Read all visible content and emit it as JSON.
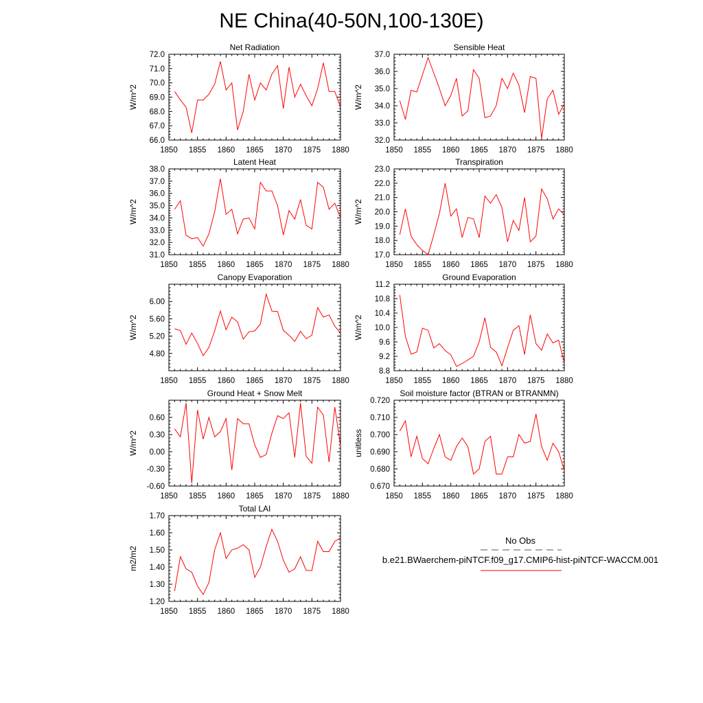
{
  "page": {
    "title": "NE China(40-50N,100-130E)"
  },
  "legend": {
    "obs_label": "No Obs",
    "model_label": "b.e21.BWaerchem-piNTCF.f09_g17.CMIP6-hist-piNTCF-WACCM.001",
    "obs_color": "#555555",
    "model_color": "#ff0000"
  },
  "chart_data": [
    {
      "type": "line",
      "title": "Net Radiation",
      "ylabel": "W/m^2",
      "xlim": [
        1850,
        1880
      ],
      "ylim": [
        66,
        72
      ],
      "xticks": [
        "1850",
        "1855",
        "1860",
        "1865",
        "1870",
        "1875",
        "1880"
      ],
      "yticks": [
        "66.0",
        "67.0",
        "68.0",
        "69.0",
        "70.0",
        "71.0",
        "72.0"
      ],
      "series": [
        {
          "color": "#ff0000",
          "x": [
            1851,
            1852,
            1853,
            1854,
            1855,
            1856,
            1857,
            1858,
            1859,
            1860,
            1861,
            1862,
            1863,
            1864,
            1865,
            1866,
            1867,
            1868,
            1869,
            1870,
            1871,
            1872,
            1873,
            1874,
            1875,
            1876,
            1877,
            1878,
            1879,
            1880
          ],
          "y": [
            69.4,
            68.8,
            68.3,
            66.5,
            68.8,
            68.8,
            69.2,
            69.9,
            71.5,
            69.5,
            70.0,
            66.7,
            68.0,
            70.6,
            68.8,
            70.0,
            69.5,
            70.6,
            71.2,
            68.2,
            71.1,
            69.0,
            69.9,
            69.1,
            68.4,
            69.6,
            71.4,
            69.4,
            69.4,
            68.3
          ]
        }
      ]
    },
    {
      "type": "line",
      "title": "Sensible Heat",
      "ylabel": "W/m^2",
      "xlim": [
        1850,
        1880
      ],
      "ylim": [
        32,
        37
      ],
      "xticks": [
        "1850",
        "1855",
        "1860",
        "1865",
        "1870",
        "1875",
        "1880"
      ],
      "yticks": [
        "32.0",
        "33.0",
        "34.0",
        "35.0",
        "36.0",
        "37.0"
      ],
      "series": [
        {
          "color": "#ff0000",
          "x": [
            1851,
            1852,
            1853,
            1854,
            1855,
            1856,
            1857,
            1858,
            1859,
            1860,
            1861,
            1862,
            1863,
            1864,
            1865,
            1866,
            1867,
            1868,
            1869,
            1870,
            1871,
            1872,
            1873,
            1874,
            1875,
            1876,
            1877,
            1878,
            1879,
            1880
          ],
          "y": [
            34.3,
            33.2,
            34.9,
            34.8,
            35.8,
            36.8,
            35.9,
            35.0,
            34.0,
            34.6,
            35.6,
            33.4,
            33.7,
            36.1,
            35.6,
            33.3,
            33.4,
            34.0,
            35.6,
            35.0,
            35.9,
            35.2,
            33.6,
            35.7,
            35.6,
            32.1,
            34.4,
            34.9,
            33.5,
            34.1
          ]
        }
      ]
    },
    {
      "type": "line",
      "title": "Latent Heat",
      "ylabel": "W/m^2",
      "xlim": [
        1850,
        1880
      ],
      "ylim": [
        31,
        38
      ],
      "xticks": [
        "1850",
        "1855",
        "1860",
        "1865",
        "1870",
        "1875",
        "1880"
      ],
      "yticks": [
        "31.0",
        "32.0",
        "33.0",
        "34.0",
        "35.0",
        "36.0",
        "37.0",
        "38.0"
      ],
      "series": [
        {
          "color": "#ff0000",
          "x": [
            1851,
            1852,
            1853,
            1854,
            1855,
            1856,
            1857,
            1858,
            1859,
            1860,
            1861,
            1862,
            1863,
            1864,
            1865,
            1866,
            1867,
            1868,
            1869,
            1870,
            1871,
            1872,
            1873,
            1874,
            1875,
            1876,
            1877,
            1878,
            1879,
            1880
          ],
          "y": [
            34.7,
            35.4,
            32.6,
            32.3,
            32.4,
            31.7,
            32.7,
            34.5,
            37.2,
            34.3,
            34.7,
            32.7,
            33.9,
            34.0,
            33.1,
            36.9,
            36.2,
            36.2,
            35.0,
            32.6,
            34.6,
            33.9,
            35.5,
            33.4,
            33.1,
            36.9,
            36.5,
            34.7,
            35.2,
            34.0
          ]
        }
      ]
    },
    {
      "type": "line",
      "title": "Transpiration",
      "ylabel": "W/m^2",
      "xlim": [
        1850,
        1880
      ],
      "ylim": [
        17,
        23
      ],
      "xticks": [
        "1850",
        "1855",
        "1860",
        "1865",
        "1870",
        "1875",
        "1880"
      ],
      "yticks": [
        "17.0",
        "18.0",
        "19.0",
        "20.0",
        "21.0",
        "22.0",
        "23.0"
      ],
      "series": [
        {
          "color": "#ff0000",
          "x": [
            1851,
            1852,
            1853,
            1854,
            1855,
            1856,
            1857,
            1858,
            1859,
            1860,
            1861,
            1862,
            1863,
            1864,
            1865,
            1866,
            1867,
            1868,
            1869,
            1870,
            1871,
            1872,
            1873,
            1874,
            1875,
            1876,
            1877,
            1878,
            1879,
            1880
          ],
          "y": [
            18.4,
            20.2,
            18.3,
            17.7,
            17.3,
            17.0,
            18.4,
            19.9,
            22.0,
            19.7,
            20.2,
            18.2,
            19.6,
            19.5,
            18.2,
            21.1,
            20.6,
            21.2,
            20.3,
            17.9,
            19.4,
            18.7,
            21.0,
            17.9,
            18.3,
            21.6,
            20.9,
            19.5,
            20.2,
            19.8
          ]
        }
      ]
    },
    {
      "type": "line",
      "title": "Canopy Evaporation",
      "ylabel": "W/m^2",
      "xlim": [
        1850,
        1880
      ],
      "ylim": [
        4.4,
        6.4
      ],
      "xticks": [
        "1850",
        "1855",
        "1860",
        "1865",
        "1870",
        "1875",
        "1880"
      ],
      "yticks": [
        "4.80",
        "5.20",
        "5.60",
        "6.00"
      ],
      "series": [
        {
          "color": "#ff0000",
          "x": [
            1851,
            1852,
            1853,
            1854,
            1855,
            1856,
            1857,
            1858,
            1859,
            1860,
            1861,
            1862,
            1863,
            1864,
            1865,
            1866,
            1867,
            1868,
            1869,
            1870,
            1871,
            1872,
            1873,
            1874,
            1875,
            1876,
            1877,
            1878,
            1879,
            1880
          ],
          "y": [
            5.37,
            5.33,
            5.01,
            5.27,
            5.03,
            4.75,
            4.94,
            5.32,
            5.78,
            5.35,
            5.64,
            5.53,
            5.13,
            5.3,
            5.32,
            5.48,
            6.17,
            5.78,
            5.77,
            5.33,
            5.22,
            5.08,
            5.31,
            5.14,
            5.22,
            5.86,
            5.64,
            5.69,
            5.43,
            5.27
          ]
        }
      ]
    },
    {
      "type": "line",
      "title": "Ground Evaporation",
      "ylabel": "W/m^2",
      "xlim": [
        1850,
        1880
      ],
      "ylim": [
        8.8,
        11.2
      ],
      "xticks": [
        "1850",
        "1855",
        "1860",
        "1865",
        "1870",
        "1875",
        "1880"
      ],
      "yticks": [
        "8.8",
        "9.2",
        "9.6",
        "10.0",
        "10.4",
        "10.8",
        "11.2"
      ],
      "series": [
        {
          "color": "#ff0000",
          "x": [
            1851,
            1852,
            1853,
            1854,
            1855,
            1856,
            1857,
            1858,
            1859,
            1860,
            1861,
            1862,
            1863,
            1864,
            1865,
            1866,
            1867,
            1868,
            1869,
            1870,
            1871,
            1872,
            1873,
            1874,
            1875,
            1876,
            1877,
            1878,
            1879,
            1880
          ],
          "y": [
            10.9,
            9.75,
            9.26,
            9.32,
            9.98,
            9.92,
            9.43,
            9.55,
            9.36,
            9.24,
            8.92,
            9.0,
            9.1,
            9.2,
            9.6,
            10.27,
            9.45,
            9.32,
            8.94,
            9.44,
            9.92,
            10.05,
            9.25,
            10.35,
            9.55,
            9.37,
            9.82,
            9.57,
            9.65,
            9.02
          ]
        }
      ]
    },
    {
      "type": "line",
      "title": "Ground Heat + Snow Melt",
      "ylabel": "W/m^2",
      "xlim": [
        1850,
        1880
      ],
      "ylim": [
        -0.6,
        0.9
      ],
      "xticks": [
        "1850",
        "1855",
        "1860",
        "1865",
        "1870",
        "1875",
        "1880"
      ],
      "yticks": [
        "-0.60",
        "-0.30",
        "0.00",
        "0.30",
        "0.60"
      ],
      "series": [
        {
          "color": "#ff0000",
          "x": [
            1851,
            1852,
            1853,
            1854,
            1855,
            1856,
            1857,
            1858,
            1859,
            1860,
            1861,
            1862,
            1863,
            1864,
            1865,
            1866,
            1867,
            1868,
            1869,
            1870,
            1871,
            1872,
            1873,
            1874,
            1875,
            1876,
            1877,
            1878,
            1879,
            1880
          ],
          "y": [
            0.4,
            0.26,
            0.85,
            -0.55,
            0.73,
            0.22,
            0.6,
            0.26,
            0.35,
            0.58,
            -0.32,
            0.58,
            0.49,
            0.49,
            0.12,
            -0.1,
            -0.05,
            0.32,
            0.63,
            0.58,
            0.68,
            -0.1,
            0.85,
            -0.08,
            -0.2,
            0.78,
            0.64,
            -0.18,
            0.78,
            0.1
          ]
        }
      ]
    },
    {
      "type": "line",
      "title": "Soil moisture factor (BTRAN or BTRANMN)",
      "ylabel": "unitless",
      "xlim": [
        1850,
        1880
      ],
      "ylim": [
        0.67,
        0.72
      ],
      "xticks": [
        "1850",
        "1855",
        "1860",
        "1865",
        "1870",
        "1875",
        "1880"
      ],
      "yticks": [
        "0.670",
        "0.680",
        "0.690",
        "0.700",
        "0.710",
        "0.720"
      ],
      "series": [
        {
          "color": "#ff0000",
          "x": [
            1851,
            1852,
            1853,
            1854,
            1855,
            1856,
            1857,
            1858,
            1859,
            1860,
            1861,
            1862,
            1863,
            1864,
            1865,
            1866,
            1867,
            1868,
            1869,
            1870,
            1871,
            1872,
            1873,
            1874,
            1875,
            1876,
            1877,
            1878,
            1879,
            1880
          ],
          "y": [
            0.702,
            0.708,
            0.687,
            0.699,
            0.686,
            0.683,
            0.692,
            0.7,
            0.687,
            0.685,
            0.693,
            0.698,
            0.693,
            0.677,
            0.68,
            0.696,
            0.699,
            0.677,
            0.677,
            0.687,
            0.687,
            0.7,
            0.695,
            0.696,
            0.712,
            0.693,
            0.685,
            0.695,
            0.69,
            0.679
          ]
        }
      ]
    },
    {
      "type": "line",
      "title": "Total LAI",
      "ylabel": "m2/m2",
      "xlim": [
        1850,
        1880
      ],
      "ylim": [
        1.2,
        1.7
      ],
      "xticks": [
        "1850",
        "1855",
        "1860",
        "1865",
        "1870",
        "1875",
        "1880"
      ],
      "yticks": [
        "1.20",
        "1.30",
        "1.40",
        "1.50",
        "1.60",
        "1.70"
      ],
      "series": [
        {
          "color": "#ff0000",
          "x": [
            1851,
            1852,
            1853,
            1854,
            1855,
            1856,
            1857,
            1858,
            1859,
            1860,
            1861,
            1862,
            1863,
            1864,
            1865,
            1866,
            1867,
            1868,
            1869,
            1870,
            1871,
            1872,
            1873,
            1874,
            1875,
            1876,
            1877,
            1878,
            1879,
            1880
          ],
          "y": [
            1.26,
            1.46,
            1.39,
            1.37,
            1.29,
            1.24,
            1.31,
            1.5,
            1.6,
            1.45,
            1.5,
            1.51,
            1.53,
            1.5,
            1.34,
            1.4,
            1.52,
            1.62,
            1.55,
            1.44,
            1.37,
            1.39,
            1.46,
            1.38,
            1.38,
            1.55,
            1.49,
            1.49,
            1.55,
            1.57
          ]
        }
      ]
    }
  ]
}
